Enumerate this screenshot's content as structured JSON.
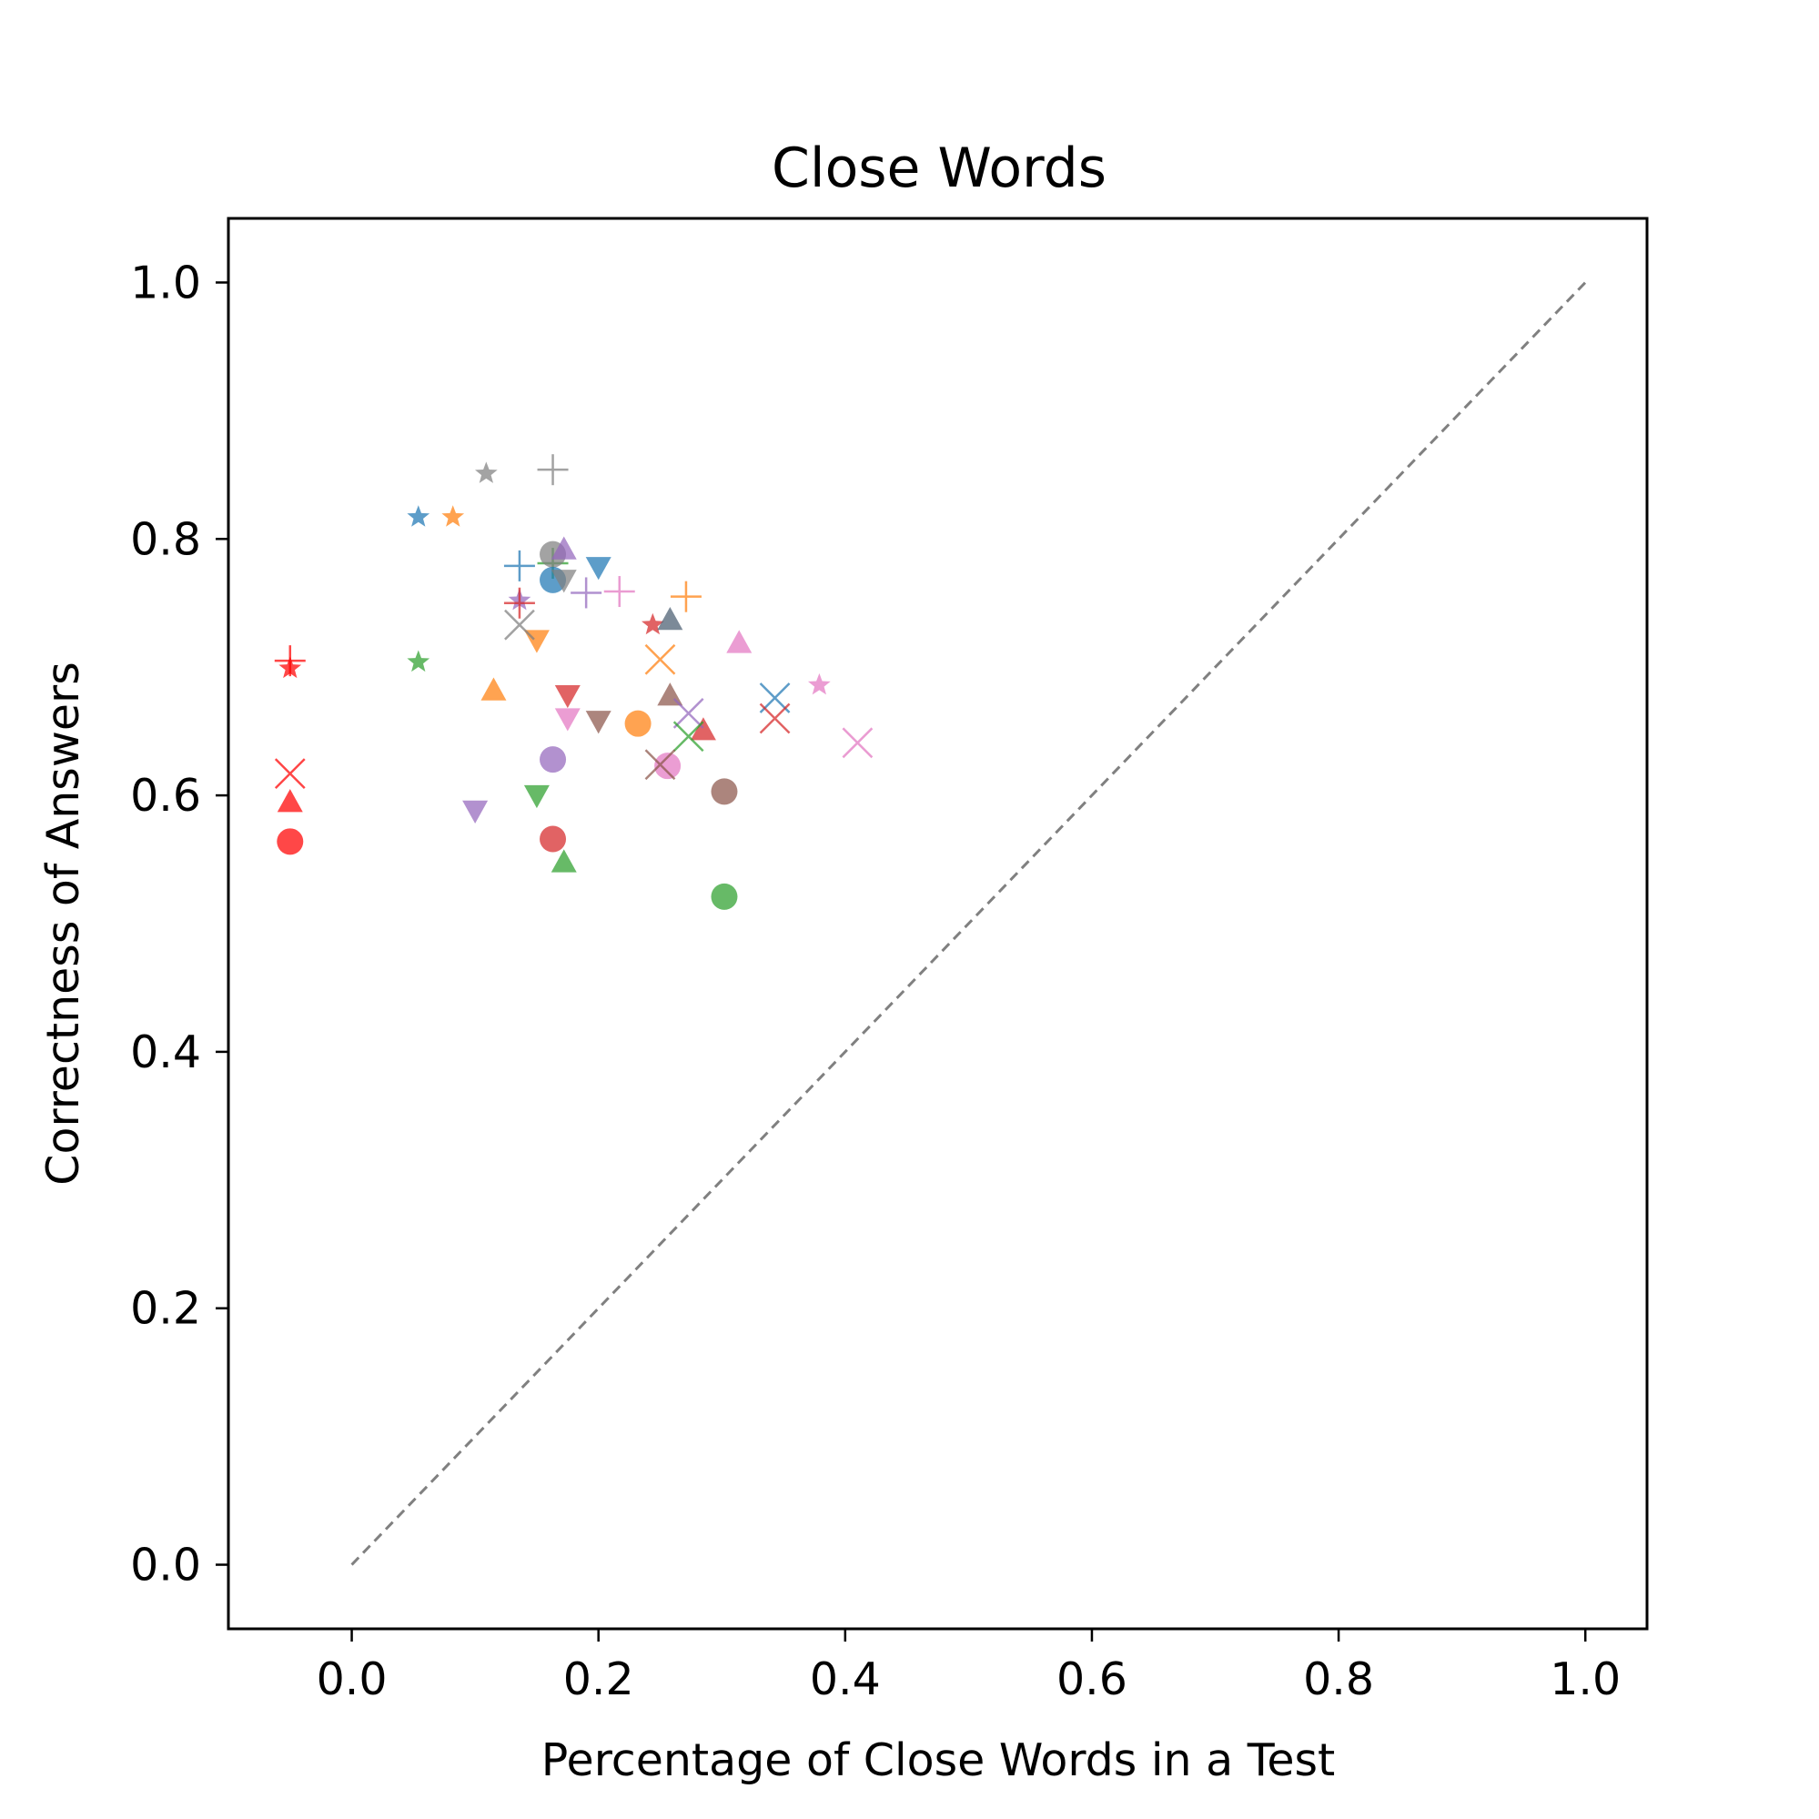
{
  "chart_data": {
    "type": "scatter",
    "title": "Close Words",
    "xlabel": "Percentage of Close Words in a Test",
    "ylabel": "Correctness of Answers",
    "xlim": [
      -0.1,
      1.05
    ],
    "ylim": [
      -0.05,
      1.05
    ],
    "xticks": [
      0.0,
      0.2,
      0.4,
      0.6,
      0.8,
      1.0
    ],
    "yticks": [
      0.0,
      0.2,
      0.4,
      0.6,
      0.8,
      1.0
    ],
    "xtick_labels": [
      "0.0",
      "0.2",
      "0.4",
      "0.6",
      "0.8",
      "1.0"
    ],
    "ytick_labels": [
      "0.0",
      "0.2",
      "0.4",
      "0.6",
      "0.8",
      "1.0"
    ],
    "reference_line": {
      "style": "dashed",
      "color": "#808080",
      "x": [
        0.0,
        1.0
      ],
      "y": [
        0.0,
        1.0
      ]
    },
    "colors": {
      "blue": "#1f77b4",
      "orange": "#ff7f0e",
      "green": "#2ca02c",
      "red": "#d62728",
      "purple": "#9467bd",
      "brown": "#8c564b",
      "pink": "#e377c2",
      "gray": "#7f7f7f",
      "bright_red": "#ff0000",
      "slate": "#4a5d70"
    },
    "points": [
      {
        "x": 0.054,
        "y": 0.817,
        "marker": "star",
        "color": "blue"
      },
      {
        "x": 0.082,
        "y": 0.817,
        "marker": "star",
        "color": "orange"
      },
      {
        "x": 0.109,
        "y": 0.851,
        "marker": "star",
        "color": "gray"
      },
      {
        "x": 0.054,
        "y": 0.704,
        "marker": "star",
        "color": "green"
      },
      {
        "x": 0.136,
        "y": 0.752,
        "marker": "star",
        "color": "purple"
      },
      {
        "x": 0.244,
        "y": 0.733,
        "marker": "star",
        "color": "red"
      },
      {
        "x": 0.379,
        "y": 0.686,
        "marker": "star",
        "color": "pink"
      },
      {
        "x": -0.05,
        "y": 0.699,
        "marker": "star",
        "color": "bright_red"
      },
      {
        "x": 0.163,
        "y": 0.854,
        "marker": "plus",
        "color": "gray"
      },
      {
        "x": 0.136,
        "y": 0.779,
        "marker": "plus",
        "color": "blue"
      },
      {
        "x": 0.163,
        "y": 0.781,
        "marker": "plus",
        "color": "green"
      },
      {
        "x": 0.19,
        "y": 0.758,
        "marker": "plus",
        "color": "purple"
      },
      {
        "x": 0.217,
        "y": 0.759,
        "marker": "plus",
        "color": "pink"
      },
      {
        "x": 0.271,
        "y": 0.755,
        "marker": "plus",
        "color": "orange"
      },
      {
        "x": 0.136,
        "y": 0.75,
        "marker": "plus",
        "color": "red"
      },
      {
        "x": -0.05,
        "y": 0.705,
        "marker": "plus",
        "color": "bright_red"
      },
      {
        "x": 0.163,
        "y": 0.788,
        "marker": "circle",
        "color": "gray"
      },
      {
        "x": 0.163,
        "y": 0.768,
        "marker": "circle",
        "color": "blue"
      },
      {
        "x": 0.232,
        "y": 0.656,
        "marker": "circle",
        "color": "orange"
      },
      {
        "x": 0.163,
        "y": 0.628,
        "marker": "circle",
        "color": "purple"
      },
      {
        "x": 0.256,
        "y": 0.623,
        "marker": "circle",
        "color": "pink"
      },
      {
        "x": 0.302,
        "y": 0.603,
        "marker": "circle",
        "color": "brown"
      },
      {
        "x": 0.163,
        "y": 0.566,
        "marker": "circle",
        "color": "red"
      },
      {
        "x": 0.302,
        "y": 0.521,
        "marker": "circle",
        "color": "green"
      },
      {
        "x": -0.05,
        "y": 0.564,
        "marker": "circle",
        "color": "bright_red"
      },
      {
        "x": 0.172,
        "y": 0.792,
        "marker": "triangle-up",
        "color": "purple"
      },
      {
        "x": 0.258,
        "y": 0.737,
        "marker": "triangle-up",
        "color": "slate"
      },
      {
        "x": 0.314,
        "y": 0.719,
        "marker": "triangle-up",
        "color": "pink"
      },
      {
        "x": 0.115,
        "y": 0.682,
        "marker": "triangle-up",
        "color": "orange"
      },
      {
        "x": 0.258,
        "y": 0.678,
        "marker": "triangle-up",
        "color": "brown"
      },
      {
        "x": 0.285,
        "y": 0.651,
        "marker": "triangle-up",
        "color": "red"
      },
      {
        "x": 0.172,
        "y": 0.548,
        "marker": "triangle-up",
        "color": "green"
      },
      {
        "x": -0.05,
        "y": 0.595,
        "marker": "triangle-up",
        "color": "bright_red"
      },
      {
        "x": 0.2,
        "y": 0.778,
        "marker": "triangle-down",
        "color": "blue"
      },
      {
        "x": 0.172,
        "y": 0.768,
        "marker": "triangle-down",
        "color": "gray"
      },
      {
        "x": 0.15,
        "y": 0.721,
        "marker": "triangle-down",
        "color": "orange"
      },
      {
        "x": 0.175,
        "y": 0.678,
        "marker": "triangle-down",
        "color": "red"
      },
      {
        "x": 0.175,
        "y": 0.66,
        "marker": "triangle-down",
        "color": "pink"
      },
      {
        "x": 0.2,
        "y": 0.658,
        "marker": "triangle-down",
        "color": "brown"
      },
      {
        "x": 0.15,
        "y": 0.6,
        "marker": "triangle-down",
        "color": "green"
      },
      {
        "x": 0.1,
        "y": 0.588,
        "marker": "triangle-down",
        "color": "purple"
      },
      {
        "x": 0.136,
        "y": 0.733,
        "marker": "x",
        "color": "gray"
      },
      {
        "x": 0.25,
        "y": 0.706,
        "marker": "x",
        "color": "orange"
      },
      {
        "x": 0.343,
        "y": 0.676,
        "marker": "x",
        "color": "blue"
      },
      {
        "x": 0.343,
        "y": 0.66,
        "marker": "x",
        "color": "red"
      },
      {
        "x": 0.273,
        "y": 0.664,
        "marker": "x",
        "color": "purple"
      },
      {
        "x": 0.273,
        "y": 0.646,
        "marker": "x",
        "color": "green"
      },
      {
        "x": 0.41,
        "y": 0.641,
        "marker": "x",
        "color": "pink"
      },
      {
        "x": 0.25,
        "y": 0.624,
        "marker": "x",
        "color": "brown"
      },
      {
        "x": -0.05,
        "y": 0.617,
        "marker": "x",
        "color": "bright_red"
      }
    ]
  }
}
